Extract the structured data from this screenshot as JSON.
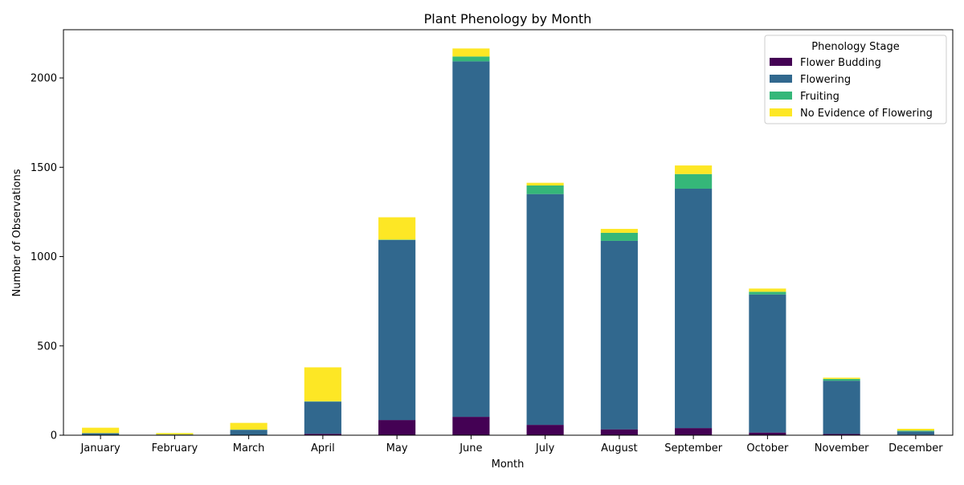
{
  "chart_data": {
    "type": "bar",
    "stacked": true,
    "title": "Plant Phenology by Month",
    "xlabel": "Month",
    "ylabel": "Number of Observations",
    "categories": [
      "January",
      "February",
      "March",
      "April",
      "May",
      "June",
      "July",
      "August",
      "September",
      "October",
      "November",
      "December"
    ],
    "ylim": [
      0,
      2270
    ],
    "yticks": [
      0,
      500,
      1000,
      1500,
      2000
    ],
    "grid": false,
    "legend": {
      "title": "Phenology Stage",
      "placement": "top-right"
    },
    "series": [
      {
        "name": "Flower Budding",
        "color": "#440154",
        "values": [
          1,
          1,
          2,
          8,
          85,
          103,
          58,
          33,
          40,
          15,
          7,
          3
        ]
      },
      {
        "name": "Flowering",
        "color": "#31688e",
        "values": [
          10,
          3,
          28,
          180,
          1008,
          1990,
          1292,
          1055,
          1340,
          773,
          298,
          18
        ]
      },
      {
        "name": "Fruiting",
        "color": "#35b779",
        "values": [
          1,
          0,
          1,
          2,
          2,
          27,
          48,
          45,
          82,
          15,
          10,
          5
        ]
      },
      {
        "name": "No Evidence of Flowering",
        "color": "#fde725",
        "values": [
          30,
          8,
          38,
          190,
          125,
          45,
          15,
          22,
          48,
          18,
          7,
          10
        ]
      }
    ]
  }
}
